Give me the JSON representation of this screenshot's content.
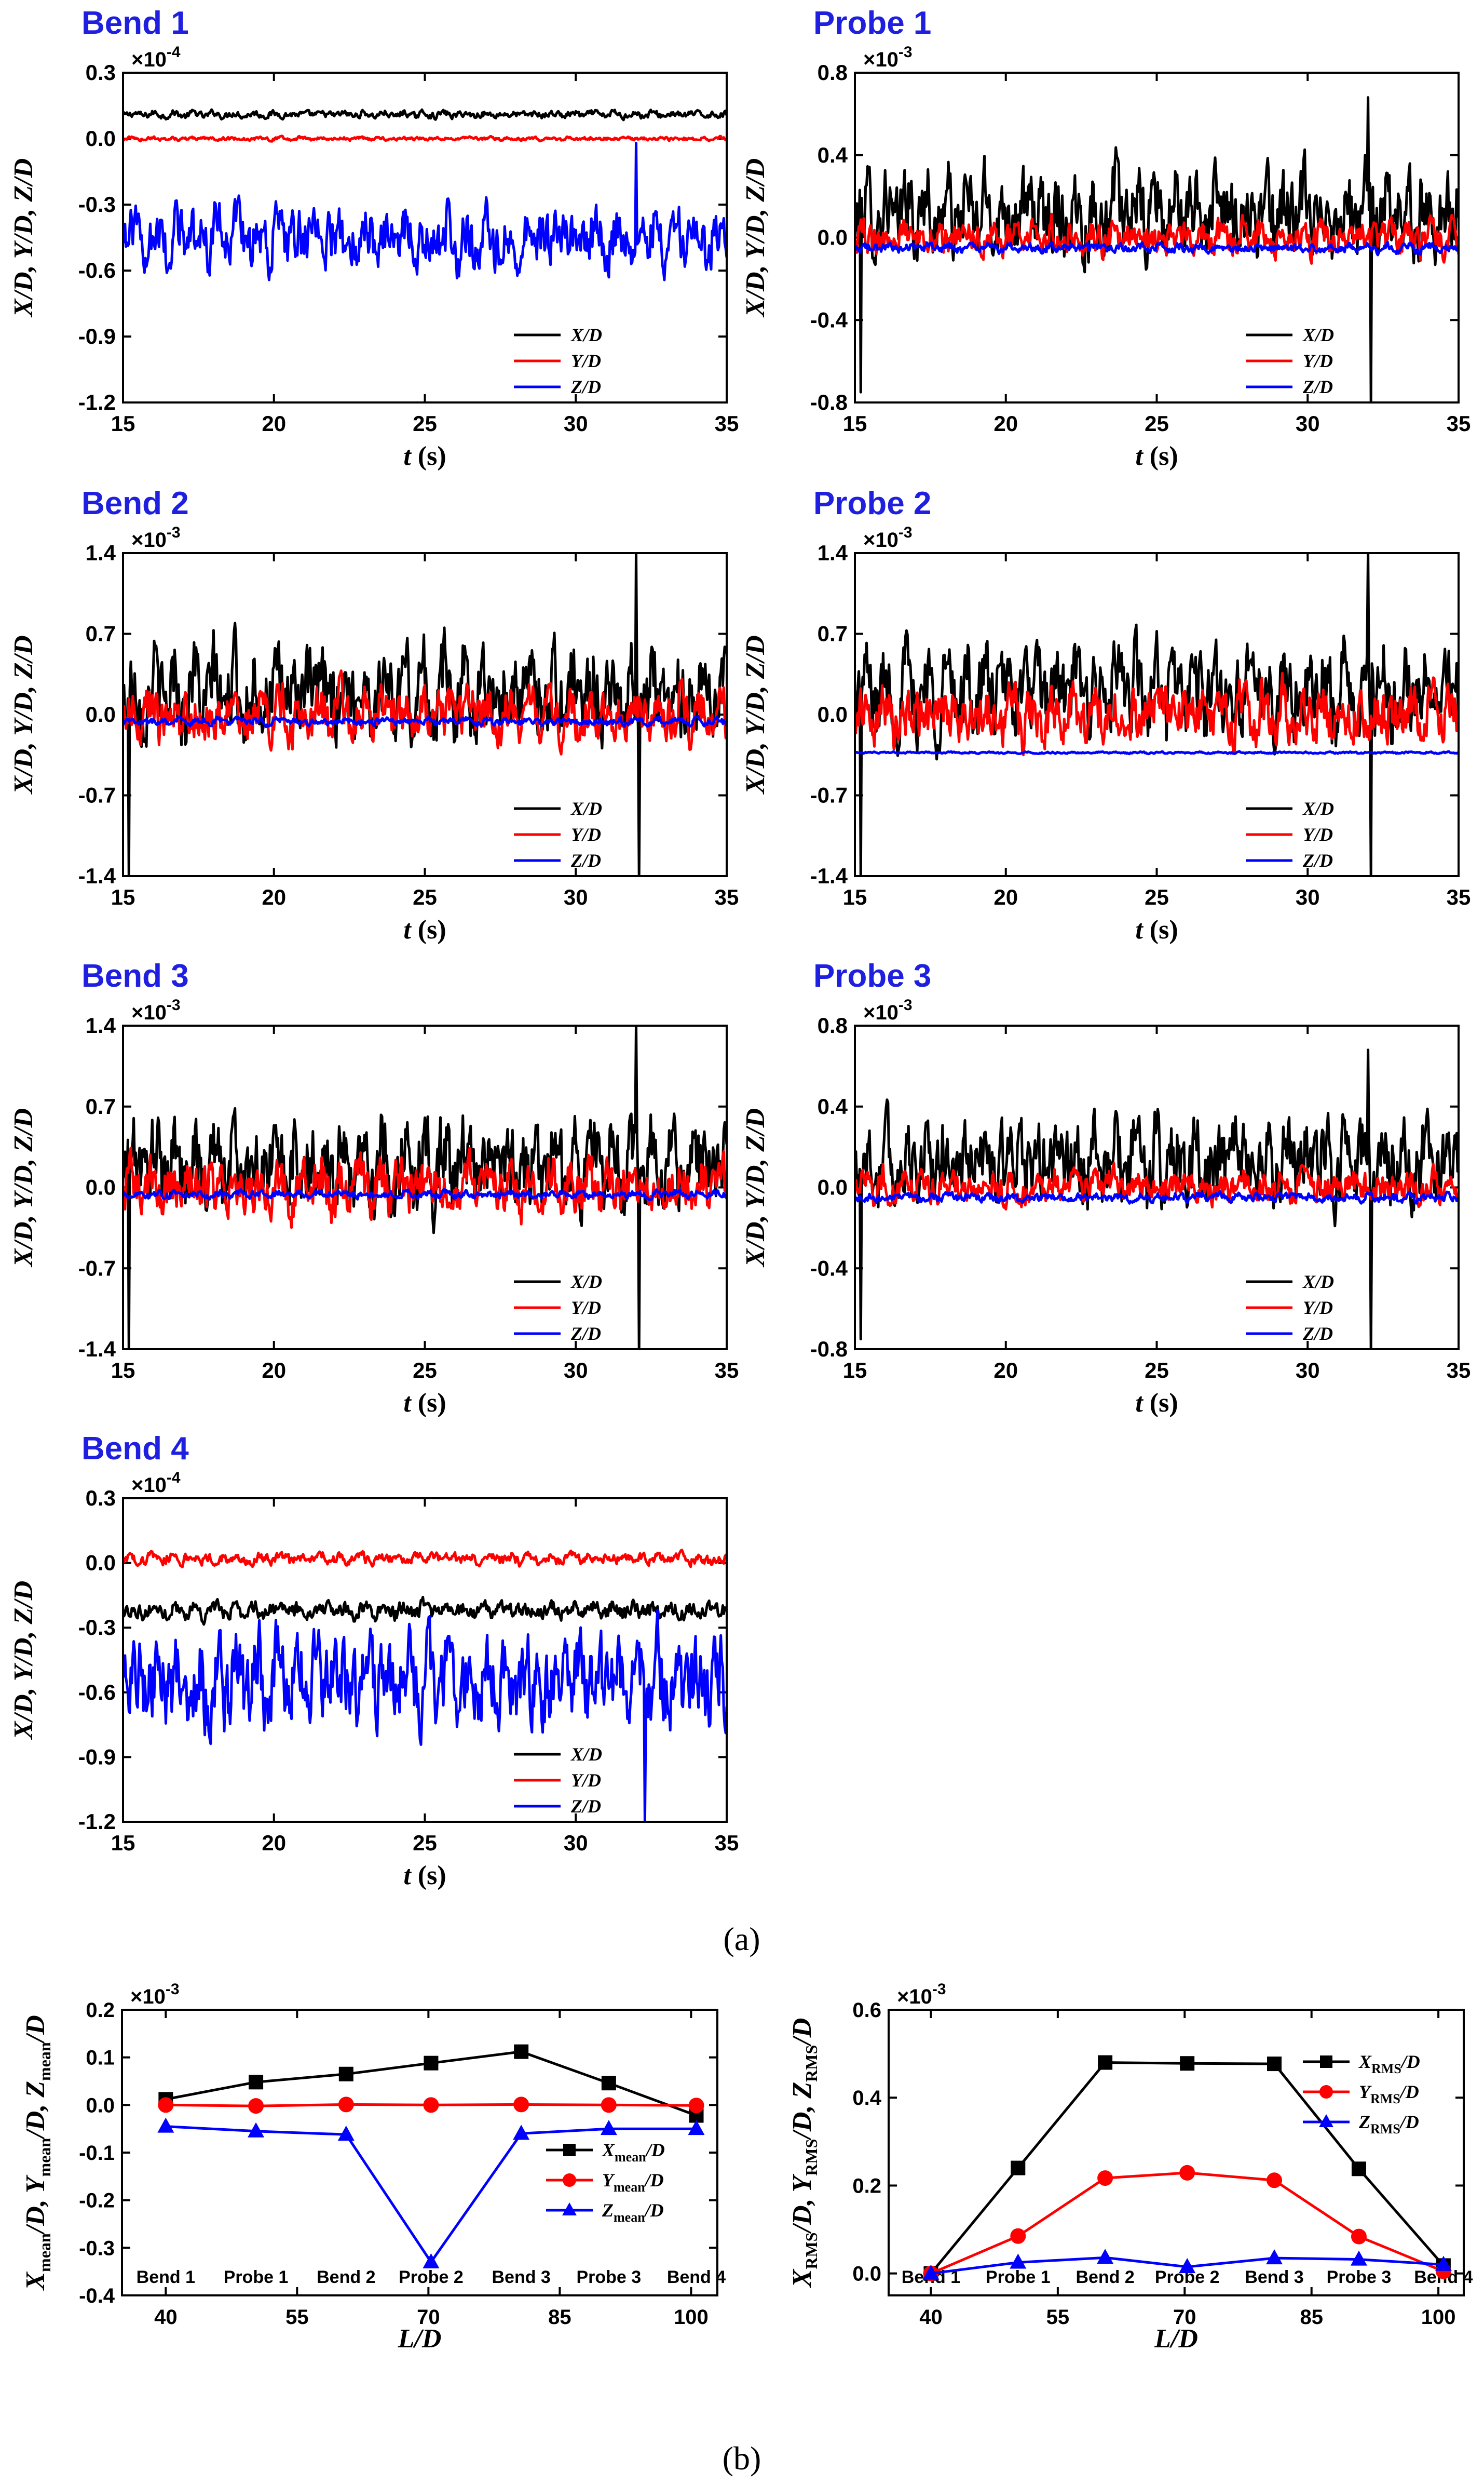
{
  "figure": {
    "caption_a": "(a)",
    "caption_b": "(b)"
  },
  "chart_data": [
    {
      "type": "line",
      "title": "Bend 1",
      "multiplier": "×10",
      "exponent": "-4",
      "xlabel": "t (s)",
      "ylabel": "X/D, Y/D, Z/D",
      "xlim": [
        15,
        35
      ],
      "ylim": [
        -1.2,
        0.3
      ],
      "xticks": [
        15,
        20,
        25,
        30,
        35
      ],
      "yticks": [
        -1.2,
        -0.9,
        -0.6,
        -0.3,
        0.0,
        0.3
      ],
      "yticklabels": [
        "-1.2",
        "-0.9",
        "-0.6",
        "-0.3",
        "0.0",
        "0.3"
      ],
      "series": [
        {
          "name": "X/D",
          "color": "#000000",
          "mean": 0.11,
          "amp": 0.03,
          "spikes": []
        },
        {
          "name": "Y/D",
          "color": "#ff0000",
          "mean": 0.0,
          "amp": 0.015,
          "spikes": []
        },
        {
          "name": "Z/D",
          "color": "#0000ff",
          "mean": -0.45,
          "amp": 0.25,
          "spikes": [
            [
              32.0,
              -0.02
            ]
          ]
        }
      ]
    },
    {
      "type": "line",
      "title": "Probe 1",
      "multiplier": "×10",
      "exponent": "-3",
      "xlabel": "t (s)",
      "ylabel": "X/D, Y/D, Z/D",
      "xlim": [
        15,
        35
      ],
      "ylim": [
        -0.8,
        0.8
      ],
      "xticks": [
        15,
        20,
        25,
        30,
        35
      ],
      "yticks": [
        -0.8,
        -0.4,
        0.0,
        0.4,
        0.8
      ],
      "yticklabels": [
        "-0.8",
        "-0.4",
        "0.0",
        "0.4",
        "0.8"
      ],
      "series": [
        {
          "name": "X/D",
          "color": "#000000",
          "mean": 0.12,
          "amp": 0.38,
          "spikes": [
            [
              15.2,
              -0.75
            ],
            [
              32.0,
              0.68
            ],
            [
              32.1,
              -0.8
            ]
          ]
        },
        {
          "name": "Y/D",
          "color": "#ff0000",
          "mean": 0.0,
          "amp": 0.15,
          "spikes": []
        },
        {
          "name": "Z/D",
          "color": "#0000ff",
          "mean": -0.05,
          "amp": 0.04,
          "spikes": []
        }
      ]
    },
    {
      "type": "line",
      "title": "Bend 2",
      "multiplier": "×10",
      "exponent": "-3",
      "xlabel": "t (s)",
      "ylabel": "X/D, Y/D, Z/D",
      "xlim": [
        15,
        35
      ],
      "ylim": [
        -1.4,
        1.4
      ],
      "xticks": [
        15,
        20,
        25,
        30,
        35
      ],
      "yticks": [
        -1.4,
        -0.7,
        0.0,
        0.7,
        1.4
      ],
      "yticklabels": [
        "-1.4",
        "-0.7",
        "0.0",
        "0.7",
        "1.4"
      ],
      "series": [
        {
          "name": "X/D",
          "color": "#000000",
          "mean": 0.2,
          "amp": 0.7,
          "spikes": [
            [
              15.2,
              -1.4
            ],
            [
              32.0,
              1.4
            ],
            [
              32.1,
              -1.4
            ]
          ]
        },
        {
          "name": "Y/D",
          "color": "#ff0000",
          "mean": 0.0,
          "amp": 0.42,
          "spikes": []
        },
        {
          "name": "Z/D",
          "color": "#0000ff",
          "mean": -0.06,
          "amp": 0.06,
          "spikes": []
        }
      ]
    },
    {
      "type": "line",
      "title": "Probe 2",
      "multiplier": "×10",
      "exponent": "-3",
      "xlabel": "t (s)",
      "ylabel": "X/D, Y/D, Z/D",
      "xlim": [
        15,
        35
      ],
      "ylim": [
        -1.4,
        1.4
      ],
      "xticks": [
        15,
        20,
        25,
        30,
        35
      ],
      "yticks": [
        -1.4,
        -0.7,
        0.0,
        0.7,
        1.4
      ],
      "yticklabels": [
        "-1.4",
        "-0.7",
        "0.0",
        "0.7",
        "1.4"
      ],
      "series": [
        {
          "name": "X/D",
          "color": "#000000",
          "mean": 0.2,
          "amp": 0.7,
          "spikes": [
            [
              15.2,
              -1.4
            ],
            [
              32.0,
              1.4
            ],
            [
              32.1,
              -1.4
            ]
          ]
        },
        {
          "name": "Y/D",
          "color": "#ff0000",
          "mean": 0.0,
          "amp": 0.45,
          "spikes": []
        },
        {
          "name": "Z/D",
          "color": "#0000ff",
          "mean": -0.33,
          "amp": 0.015,
          "spikes": []
        }
      ]
    },
    {
      "type": "line",
      "title": "Bend 3",
      "multiplier": "×10",
      "exponent": "-3",
      "xlabel": "t (s)",
      "ylabel": "X/D, Y/D, Z/D",
      "xlim": [
        15,
        35
      ],
      "ylim": [
        -1.4,
        1.4
      ],
      "xticks": [
        15,
        20,
        25,
        30,
        35
      ],
      "yticks": [
        -1.4,
        -0.7,
        0.0,
        0.7,
        1.4
      ],
      "yticklabels": [
        "-1.4",
        "-0.7",
        "0.0",
        "0.7",
        "1.4"
      ],
      "series": [
        {
          "name": "X/D",
          "color": "#000000",
          "mean": 0.2,
          "amp": 0.7,
          "spikes": [
            [
              15.2,
              -1.4
            ],
            [
              32.0,
              1.4
            ],
            [
              32.1,
              -1.4
            ]
          ]
        },
        {
          "name": "Y/D",
          "color": "#ff0000",
          "mean": 0.0,
          "amp": 0.42,
          "spikes": []
        },
        {
          "name": "Z/D",
          "color": "#0000ff",
          "mean": -0.06,
          "amp": 0.06,
          "spikes": []
        }
      ]
    },
    {
      "type": "line",
      "title": "Probe 3",
      "multiplier": "×10",
      "exponent": "-3",
      "xlabel": "t (s)",
      "ylabel": "X/D, Y/D, Z/D",
      "xlim": [
        15,
        35
      ],
      "ylim": [
        -0.8,
        0.8
      ],
      "xticks": [
        15,
        20,
        25,
        30,
        35
      ],
      "yticks": [
        -0.8,
        -0.4,
        0.0,
        0.4,
        0.8
      ],
      "yticklabels": [
        "-0.8",
        "-0.4",
        "0.0",
        "0.4",
        "0.8"
      ],
      "series": [
        {
          "name": "X/D",
          "color": "#000000",
          "mean": 0.12,
          "amp": 0.38,
          "spikes": [
            [
              15.2,
              -0.75
            ],
            [
              32.0,
              0.68
            ],
            [
              32.1,
              -0.8
            ]
          ]
        },
        {
          "name": "Y/D",
          "color": "#ff0000",
          "mean": 0.0,
          "amp": 0.15,
          "spikes": []
        },
        {
          "name": "Z/D",
          "color": "#0000ff",
          "mean": -0.05,
          "amp": 0.04,
          "spikes": []
        }
      ]
    },
    {
      "type": "line",
      "title": "Bend 4",
      "multiplier": "×10",
      "exponent": "-4",
      "xlabel": "t (s)",
      "ylabel": "X/D, Y/D, Z/D",
      "xlim": [
        15,
        35
      ],
      "ylim": [
        -1.2,
        0.3
      ],
      "xticks": [
        15,
        20,
        25,
        30,
        35
      ],
      "yticks": [
        -1.2,
        -0.9,
        -0.6,
        -0.3,
        0.0,
        0.3
      ],
      "yticklabels": [
        "-1.2",
        "-0.9",
        "-0.6",
        "-0.3",
        "0.0",
        "0.3"
      ],
      "series": [
        {
          "name": "X/D",
          "color": "#000000",
          "mean": -0.22,
          "amp": 0.07,
          "spikes": []
        },
        {
          "name": "Y/D",
          "color": "#ff0000",
          "mean": 0.02,
          "amp": 0.05,
          "spikes": []
        },
        {
          "name": "Z/D",
          "color": "#0000ff",
          "mean": -0.55,
          "amp": 0.38,
          "spikes": [
            [
              32.3,
              -1.2
            ]
          ]
        }
      ]
    },
    {
      "type": "line",
      "multiplier": "×10",
      "exponent": "-3",
      "xlabel": "L/D",
      "ylabel": "Xmean/D, Ymean/D, Zmean/D",
      "xlim": [
        35,
        103
      ],
      "ylim": [
        -0.4,
        0.2
      ],
      "xticks": [
        40,
        55,
        70,
        85,
        100
      ],
      "yticks": [
        -0.4,
        -0.3,
        -0.2,
        -0.1,
        0.0,
        0.1,
        0.2
      ],
      "yticklabels": [
        "-0.4",
        "-0.3",
        "-0.2",
        "-0.1",
        "0.0",
        "0.1",
        "0.2"
      ],
      "x": [
        40,
        50.3,
        60.6,
        70.3,
        80.6,
        90.6,
        100.6
      ],
      "station_labels": [
        "Bend 1",
        "Probe 1",
        "Bend 2",
        "Probe 2",
        "Bend 3",
        "Probe 3",
        "Bend 4"
      ],
      "series": [
        {
          "name": "X",
          "sub": "mean",
          "color": "#000000",
          "marker": "square",
          "values": [
            0.012,
            0.048,
            0.065,
            0.088,
            0.112,
            0.046,
            -0.022
          ]
        },
        {
          "name": "Y",
          "sub": "mean",
          "color": "#ff0000",
          "marker": "circle",
          "values": [
            0.0,
            -0.002,
            0.001,
            0.0,
            0.001,
            0.0,
            -0.001
          ]
        },
        {
          "name": "Z",
          "sub": "mean",
          "color": "#0000ff",
          "marker": "triangle",
          "values": [
            -0.045,
            -0.055,
            -0.062,
            -0.33,
            -0.06,
            -0.05,
            -0.05
          ]
        }
      ]
    },
    {
      "type": "line",
      "multiplier": "×10",
      "exponent": "-3",
      "xlabel": "L/D",
      "ylabel": "XRMS/D, YRMS/D, ZRMS/D",
      "xlim": [
        35,
        103
      ],
      "ylim": [
        -0.05,
        0.6
      ],
      "xticks": [
        40,
        55,
        70,
        85,
        100
      ],
      "yticks": [
        0.0,
        0.2,
        0.4,
        0.6
      ],
      "yticklabels": [
        "0.0",
        "0.2",
        "0.4",
        "0.6"
      ],
      "x": [
        40,
        50.3,
        60.6,
        70.3,
        80.6,
        90.6,
        100.6
      ],
      "station_labels": [
        "Bend 1",
        "Probe 1",
        "Bend 2",
        "Probe 2",
        "Bend 3",
        "Probe 3",
        "Bend 4"
      ],
      "series": [
        {
          "name": "X",
          "sub": "RMS",
          "color": "#000000",
          "marker": "square",
          "values": [
            0.0,
            0.24,
            0.48,
            0.478,
            0.477,
            0.238,
            0.018
          ]
        },
        {
          "name": "Y",
          "sub": "RMS",
          "color": "#ff0000",
          "marker": "circle",
          "values": [
            0.0,
            0.085,
            0.217,
            0.229,
            0.212,
            0.084,
            0.005
          ]
        },
        {
          "name": "Z",
          "sub": "RMS",
          "color": "#0000ff",
          "marker": "triangle",
          "values": [
            0.0,
            0.025,
            0.036,
            0.015,
            0.035,
            0.032,
            0.02
          ]
        }
      ]
    }
  ]
}
